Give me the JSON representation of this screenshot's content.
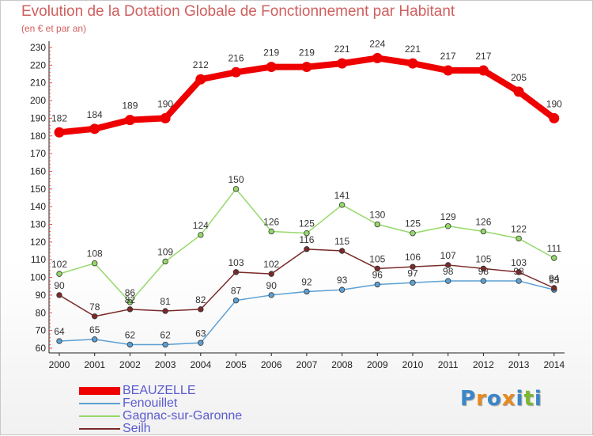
{
  "title": "Evolution de la Dotation Globale de Fonctionnement par Habitant",
  "subtitle": "(en € et par an)",
  "logo": {
    "letters": [
      "P",
      "r",
      "o",
      "x",
      "i",
      "t",
      "i"
    ],
    "colors": [
      "#3a86c8",
      "#e8891e",
      "#3a86c8",
      "#e8891e",
      "#3a86c8",
      "#7ab82e",
      "#3a86c8"
    ]
  },
  "chart_data": {
    "type": "line",
    "title": "Evolution de la Dotation Globale de Fonctionnement par Habitant",
    "subtitle": "(en € et par an)",
    "x": [
      "2000",
      "2001",
      "2002",
      "2003",
      "2004",
      "2005",
      "2006",
      "2007",
      "2008",
      "2009",
      "2010",
      "2011",
      "2012",
      "2013",
      "2014"
    ],
    "ylim": [
      60,
      230
    ],
    "yticks": [
      60,
      70,
      80,
      90,
      100,
      110,
      120,
      130,
      140,
      150,
      160,
      170,
      180,
      190,
      200,
      210,
      220,
      230
    ],
    "grid": false,
    "legend_position": "bottom-left",
    "series": [
      {
        "name": "BEAUZELLE",
        "color": "#ee0000",
        "values": [
          182,
          184,
          189,
          190,
          212,
          216,
          219,
          219,
          221,
          224,
          221,
          217,
          217,
          205,
          190
        ]
      },
      {
        "name": "Fenouillet",
        "color": "#5ca0d3",
        "values": [
          64,
          65,
          62,
          62,
          63,
          87,
          90,
          92,
          93,
          96,
          97,
          98,
          98,
          98,
          93
        ]
      },
      {
        "name": "Gagnac-sur-Garonne",
        "color": "#96d86a",
        "values": [
          102,
          108,
          86,
          109,
          124,
          150,
          126,
          125,
          141,
          130,
          125,
          129,
          126,
          122,
          111
        ]
      },
      {
        "name": "Seilh",
        "color": "#7a2a2a",
        "values": [
          90,
          78,
          82,
          81,
          82,
          103,
          102,
          116,
          115,
          105,
          106,
          107,
          105,
          103,
          94
        ]
      }
    ]
  }
}
